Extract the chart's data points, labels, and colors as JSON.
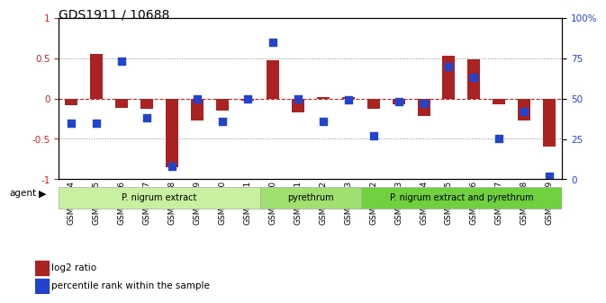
{
  "title": "GDS1911 / 10688",
  "samples": [
    "GSM66824",
    "GSM66825",
    "GSM66826",
    "GSM66827",
    "GSM66828",
    "GSM66829",
    "GSM66830",
    "GSM66831",
    "GSM66840",
    "GSM66841",
    "GSM66842",
    "GSM66843",
    "GSM66832",
    "GSM66833",
    "GSM66834",
    "GSM66835",
    "GSM66836",
    "GSM66837",
    "GSM66838",
    "GSM66839"
  ],
  "log2_ratio": [
    -0.08,
    0.55,
    -0.12,
    -0.13,
    -0.85,
    -0.27,
    -0.15,
    -0.03,
    0.47,
    -0.17,
    0.02,
    0.02,
    -0.13,
    -0.07,
    -0.22,
    0.53,
    0.49,
    -0.07,
    -0.27,
    -0.6
  ],
  "pct_rank": [
    35,
    35,
    73,
    38,
    8,
    50,
    36,
    50,
    85,
    50,
    36,
    49,
    27,
    48,
    47,
    70,
    63,
    25,
    42,
    2
  ],
  "groups": [
    {
      "label": "P. nigrum extract",
      "start": 0,
      "end": 8,
      "color": "#c8f0a0"
    },
    {
      "label": "pyrethrum",
      "start": 8,
      "end": 12,
      "color": "#a0e070"
    },
    {
      "label": "P. nigrum extract and pyrethrum",
      "start": 12,
      "end": 20,
      "color": "#70d040"
    }
  ],
  "bar_color": "#aa2222",
  "dot_color": "#2244cc",
  "hline_color": "#cc2222",
  "ylim_left": [
    -1.0,
    1.0
  ],
  "ylim_right": [
    0,
    100
  ],
  "yticks_left": [
    -1.0,
    -0.5,
    0.0,
    0.5,
    1.0
  ],
  "ytick_labels_left": [
    "-1",
    "-0.5",
    "0",
    "0.5",
    "1"
  ],
  "yticks_right": [
    0,
    25,
    50,
    75,
    100
  ],
  "ytick_labels_right": [
    "0",
    "25",
    "50",
    "75",
    "100%"
  ],
  "agent_label": "agent",
  "legend_bar_label": "log2 ratio",
  "legend_dot_label": "percentile rank within the sample",
  "bg_color": "#f0f0f0"
}
